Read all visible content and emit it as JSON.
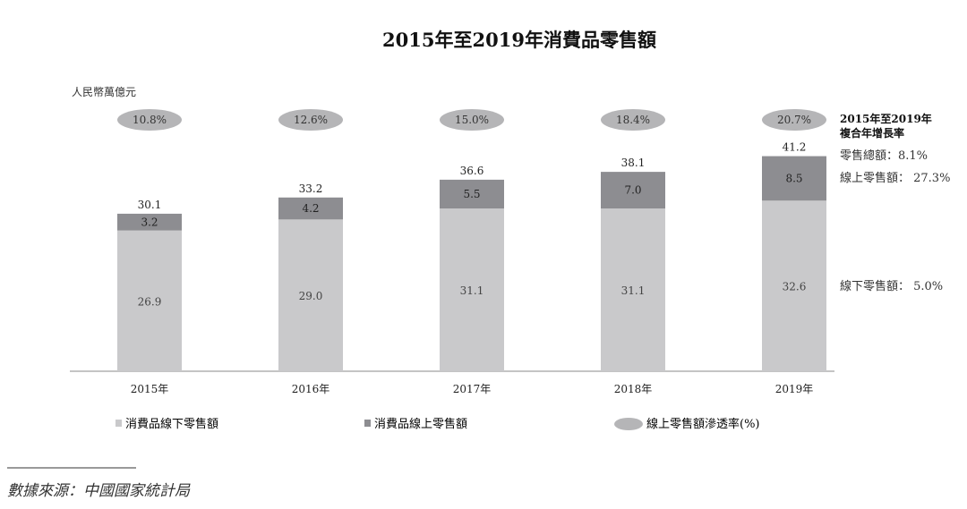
{
  "chart_data": {
    "type": "bar",
    "stacked": true,
    "title": "2015年至2019年消費品零售額",
    "ylabel": "人民幣萬億元",
    "categories": [
      "2015年",
      "2016年",
      "2017年",
      "2018年",
      "2019年"
    ],
    "series": [
      {
        "name": "消費品線下零售額",
        "values": [
          26.9,
          29.0,
          31.1,
          31.1,
          32.6
        ],
        "color": "#c9c9cb"
      },
      {
        "name": "消費品線上零售額",
        "values": [
          3.2,
          4.2,
          5.5,
          7.0,
          8.5
        ],
        "color": "#8d8d91"
      }
    ],
    "totals": [
      30.1,
      33.2,
      36.6,
      38.1,
      41.2
    ],
    "penetration": {
      "name": "線上零售額滲透率(%)",
      "values": [
        "10.8%",
        "12.6%",
        "15.0%",
        "18.4%",
        "20.7%"
      ],
      "color": "#b5b5b7"
    },
    "ylim": [
      0,
      45
    ],
    "cagr": {
      "title_line1": "2015年至2019年",
      "title_line2": "複合年增長率",
      "total": "零售總額：8.1%",
      "online": "線上零售額： 27.3%",
      "offline": "線下零售額： 5.0%"
    },
    "legend_position": "bottom"
  },
  "source": "數據來源：中國國家統計局"
}
